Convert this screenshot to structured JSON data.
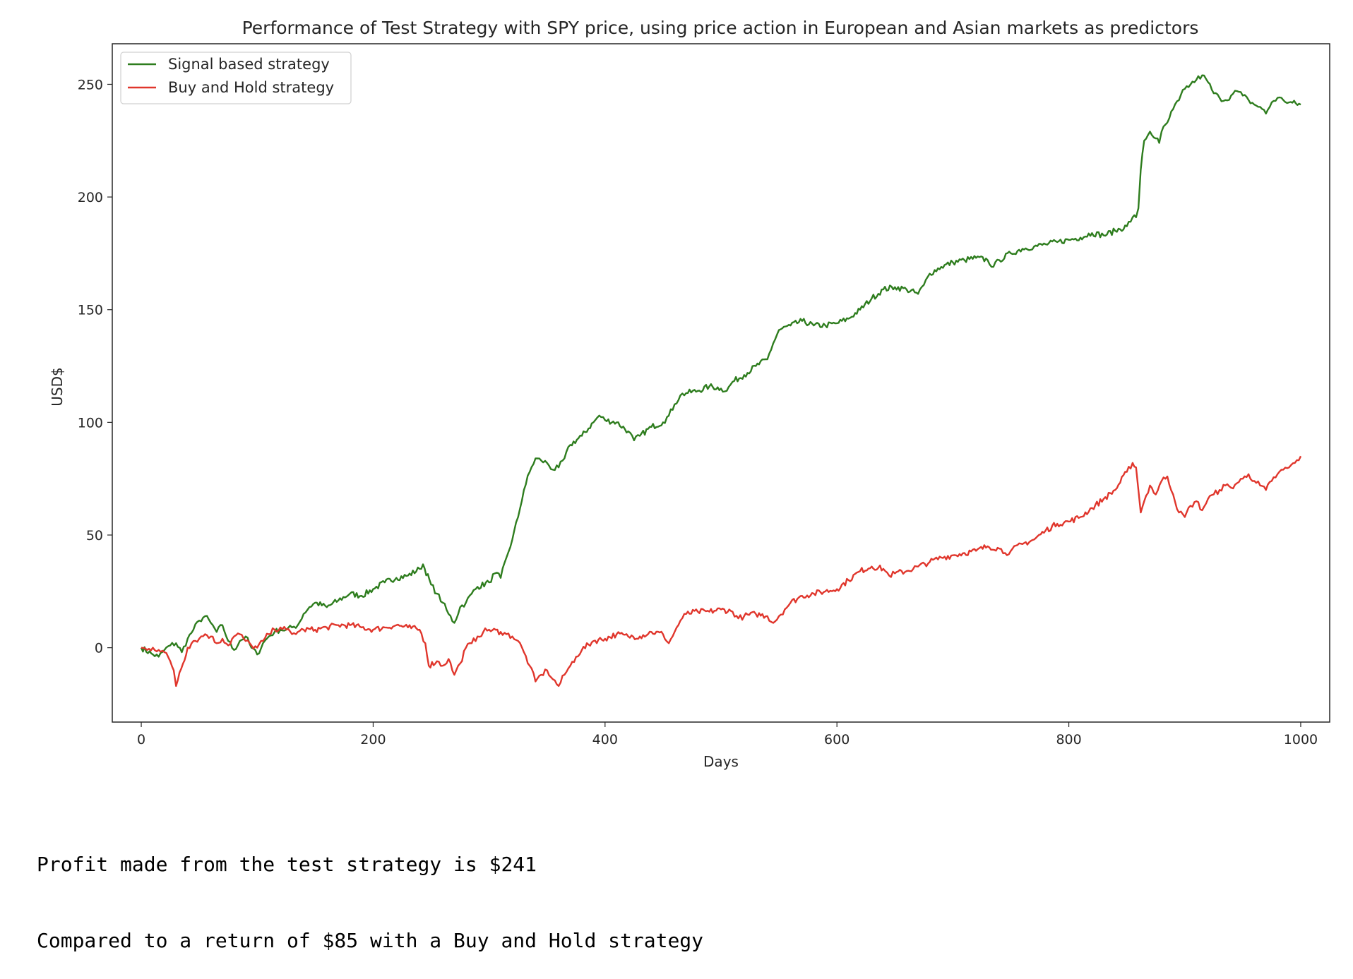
{
  "chart_data": {
    "type": "line",
    "title": "Performance of Test Strategy with SPY price, using price action in European and Asian markets as predictors",
    "xlabel": "Days",
    "ylabel": "USD$",
    "xlim": [
      -25,
      1025
    ],
    "ylim": [
      -33,
      268
    ],
    "xticks": [
      0,
      200,
      400,
      600,
      800,
      1000
    ],
    "xtick_labels": [
      "0",
      "200",
      "400",
      "600",
      "800",
      "1000"
    ],
    "yticks": [
      0,
      50,
      100,
      150,
      200,
      250
    ],
    "ytick_labels": [
      "0",
      "50",
      "100",
      "150",
      "200",
      "250"
    ],
    "grid": false,
    "legend_position": "top-left",
    "series": [
      {
        "name": "Signal based strategy",
        "color": "#2e7d1e",
        "points": [
          [
            0,
            0
          ],
          [
            10,
            -3
          ],
          [
            15,
            -4
          ],
          [
            20,
            -1
          ],
          [
            25,
            1
          ],
          [
            30,
            2
          ],
          [
            35,
            -2
          ],
          [
            40,
            4
          ],
          [
            45,
            8
          ],
          [
            50,
            12
          ],
          [
            55,
            14
          ],
          [
            60,
            11
          ],
          [
            65,
            7
          ],
          [
            70,
            10
          ],
          [
            75,
            3
          ],
          [
            80,
            -1
          ],
          [
            85,
            3
          ],
          [
            90,
            5
          ],
          [
            95,
            0
          ],
          [
            100,
            -3
          ],
          [
            105,
            2
          ],
          [
            110,
            5
          ],
          [
            115,
            7
          ],
          [
            120,
            8
          ],
          [
            125,
            8
          ],
          [
            130,
            9
          ],
          [
            135,
            10
          ],
          [
            140,
            15
          ],
          [
            145,
            18
          ],
          [
            150,
            20
          ],
          [
            160,
            18
          ],
          [
            170,
            21
          ],
          [
            180,
            24
          ],
          [
            190,
            23
          ],
          [
            200,
            26
          ],
          [
            210,
            29
          ],
          [
            220,
            31
          ],
          [
            230,
            32
          ],
          [
            240,
            35
          ],
          [
            243,
            37
          ],
          [
            250,
            28
          ],
          [
            255,
            24
          ],
          [
            260,
            20
          ],
          [
            265,
            15
          ],
          [
            270,
            11
          ],
          [
            275,
            18
          ],
          [
            280,
            20
          ],
          [
            285,
            24
          ],
          [
            290,
            27
          ],
          [
            300,
            29
          ],
          [
            305,
            33
          ],
          [
            310,
            31
          ],
          [
            315,
            40
          ],
          [
            320,
            48
          ],
          [
            325,
            58
          ],
          [
            330,
            70
          ],
          [
            335,
            78
          ],
          [
            340,
            84
          ],
          [
            345,
            83
          ],
          [
            350,
            82
          ],
          [
            355,
            79
          ],
          [
            360,
            80
          ],
          [
            365,
            84
          ],
          [
            370,
            90
          ],
          [
            380,
            94
          ],
          [
            390,
            100
          ],
          [
            395,
            103
          ],
          [
            400,
            101
          ],
          [
            410,
            100
          ],
          [
            420,
            96
          ],
          [
            425,
            92
          ],
          [
            430,
            94
          ],
          [
            440,
            98
          ],
          [
            450,
            100
          ],
          [
            455,
            103
          ],
          [
            460,
            108
          ],
          [
            465,
            112
          ],
          [
            470,
            113
          ],
          [
            480,
            114
          ],
          [
            490,
            116
          ],
          [
            500,
            115
          ],
          [
            505,
            114
          ],
          [
            510,
            118
          ],
          [
            520,
            121
          ],
          [
            530,
            125
          ],
          [
            540,
            128
          ],
          [
            545,
            135
          ],
          [
            550,
            141
          ],
          [
            560,
            143
          ],
          [
            570,
            145
          ],
          [
            580,
            143
          ],
          [
            590,
            143
          ],
          [
            600,
            144
          ],
          [
            610,
            146
          ],
          [
            620,
            150
          ],
          [
            630,
            155
          ],
          [
            640,
            159
          ],
          [
            650,
            160
          ],
          [
            660,
            159
          ],
          [
            670,
            157
          ],
          [
            675,
            161
          ],
          [
            680,
            166
          ],
          [
            690,
            169
          ],
          [
            700,
            171
          ],
          [
            710,
            172
          ],
          [
            720,
            173
          ],
          [
            730,
            172
          ],
          [
            735,
            169
          ],
          [
            740,
            172
          ],
          [
            750,
            175
          ],
          [
            760,
            177
          ],
          [
            770,
            178
          ],
          [
            780,
            179
          ],
          [
            790,
            180
          ],
          [
            800,
            181
          ],
          [
            810,
            182
          ],
          [
            820,
            184
          ],
          [
            830,
            183
          ],
          [
            840,
            185
          ],
          [
            850,
            187
          ],
          [
            855,
            191
          ],
          [
            858,
            191
          ],
          [
            860,
            195
          ],
          [
            862,
            212
          ],
          [
            865,
            225
          ],
          [
            870,
            229
          ],
          [
            875,
            226
          ],
          [
            878,
            224
          ],
          [
            880,
            229
          ],
          [
            885,
            233
          ],
          [
            890,
            239
          ],
          [
            895,
            243
          ],
          [
            900,
            248
          ],
          [
            905,
            250
          ],
          [
            910,
            252
          ],
          [
            915,
            254
          ],
          [
            920,
            251
          ],
          [
            925,
            246
          ],
          [
            930,
            244
          ],
          [
            935,
            243
          ],
          [
            940,
            245
          ],
          [
            945,
            247
          ],
          [
            950,
            245
          ],
          [
            955,
            243
          ],
          [
            960,
            241
          ],
          [
            965,
            240
          ],
          [
            970,
            237
          ],
          [
            975,
            242
          ],
          [
            980,
            244
          ],
          [
            985,
            243
          ],
          [
            990,
            242
          ],
          [
            1000,
            241
          ]
        ]
      },
      {
        "name": "Buy and Hold strategy",
        "color": "#e0362c",
        "points": [
          [
            0,
            0
          ],
          [
            5,
            -1
          ],
          [
            10,
            0
          ],
          [
            15,
            -1
          ],
          [
            20,
            -2
          ],
          [
            25,
            -6
          ],
          [
            28,
            -10
          ],
          [
            30,
            -17
          ],
          [
            33,
            -11
          ],
          [
            36,
            -7
          ],
          [
            40,
            0
          ],
          [
            45,
            3
          ],
          [
            50,
            4
          ],
          [
            55,
            6
          ],
          [
            60,
            5
          ],
          [
            65,
            2
          ],
          [
            70,
            4
          ],
          [
            75,
            1
          ],
          [
            80,
            5
          ],
          [
            85,
            6
          ],
          [
            90,
            3
          ],
          [
            95,
            1
          ],
          [
            100,
            0
          ],
          [
            105,
            3
          ],
          [
            110,
            6
          ],
          [
            115,
            8
          ],
          [
            120,
            9
          ],
          [
            125,
            8
          ],
          [
            130,
            6
          ],
          [
            135,
            7
          ],
          [
            140,
            8
          ],
          [
            150,
            8
          ],
          [
            160,
            9
          ],
          [
            170,
            10
          ],
          [
            180,
            10
          ],
          [
            190,
            9
          ],
          [
            200,
            8
          ],
          [
            210,
            9
          ],
          [
            220,
            10
          ],
          [
            230,
            9
          ],
          [
            240,
            8
          ],
          [
            245,
            2
          ],
          [
            248,
            -8
          ],
          [
            255,
            -6
          ],
          [
            260,
            -8
          ],
          [
            265,
            -5
          ],
          [
            270,
            -12
          ],
          [
            275,
            -7
          ],
          [
            280,
            0
          ],
          [
            285,
            2
          ],
          [
            290,
            5
          ],
          [
            295,
            7
          ],
          [
            300,
            8
          ],
          [
            310,
            7
          ],
          [
            315,
            6
          ],
          [
            320,
            5
          ],
          [
            325,
            3
          ],
          [
            330,
            -2
          ],
          [
            335,
            -8
          ],
          [
            340,
            -15
          ],
          [
            345,
            -12
          ],
          [
            350,
            -10
          ],
          [
            355,
            -14
          ],
          [
            360,
            -17
          ],
          [
            365,
            -12
          ],
          [
            370,
            -8
          ],
          [
            375,
            -4
          ],
          [
            380,
            -1
          ],
          [
            390,
            3
          ],
          [
            400,
            4
          ],
          [
            410,
            6
          ],
          [
            420,
            5
          ],
          [
            430,
            5
          ],
          [
            440,
            7
          ],
          [
            450,
            6
          ],
          [
            455,
            2
          ],
          [
            460,
            7
          ],
          [
            465,
            12
          ],
          [
            470,
            15
          ],
          [
            480,
            16
          ],
          [
            490,
            16
          ],
          [
            500,
            17
          ],
          [
            510,
            16
          ],
          [
            515,
            13
          ],
          [
            520,
            14
          ],
          [
            530,
            15
          ],
          [
            540,
            14
          ],
          [
            545,
            11
          ],
          [
            550,
            14
          ],
          [
            555,
            17
          ],
          [
            560,
            20
          ],
          [
            570,
            23
          ],
          [
            580,
            24
          ],
          [
            590,
            25
          ],
          [
            600,
            26
          ],
          [
            610,
            30
          ],
          [
            620,
            34
          ],
          [
            630,
            36
          ],
          [
            640,
            35
          ],
          [
            645,
            32
          ],
          [
            650,
            33
          ],
          [
            660,
            34
          ],
          [
            670,
            36
          ],
          [
            680,
            38
          ],
          [
            690,
            40
          ],
          [
            700,
            41
          ],
          [
            710,
            42
          ],
          [
            720,
            43
          ],
          [
            730,
            45
          ],
          [
            740,
            44
          ],
          [
            745,
            42
          ],
          [
            750,
            43
          ],
          [
            760,
            46
          ],
          [
            770,
            48
          ],
          [
            780,
            52
          ],
          [
            790,
            55
          ],
          [
            800,
            56
          ],
          [
            810,
            58
          ],
          [
            820,
            62
          ],
          [
            830,
            66
          ],
          [
            840,
            70
          ],
          [
            850,
            78
          ],
          [
            855,
            82
          ],
          [
            858,
            80
          ],
          [
            860,
            70
          ],
          [
            862,
            60
          ],
          [
            865,
            65
          ],
          [
            870,
            72
          ],
          [
            875,
            68
          ],
          [
            880,
            74
          ],
          [
            885,
            76
          ],
          [
            890,
            68
          ],
          [
            895,
            60
          ],
          [
            900,
            58
          ],
          [
            905,
            63
          ],
          [
            910,
            65
          ],
          [
            915,
            61
          ],
          [
            920,
            66
          ],
          [
            925,
            68
          ],
          [
            930,
            70
          ],
          [
            935,
            72
          ],
          [
            940,
            71
          ],
          [
            945,
            73
          ],
          [
            950,
            75
          ],
          [
            955,
            77
          ],
          [
            960,
            74
          ],
          [
            965,
            72
          ],
          [
            970,
            70
          ],
          [
            975,
            74
          ],
          [
            980,
            77
          ],
          [
            985,
            79
          ],
          [
            990,
            80
          ],
          [
            995,
            82
          ],
          [
            1000,
            85
          ]
        ]
      }
    ]
  },
  "output_lines": [
    "Profit made from the test strategy is $241",
    "Compared to a return of $85 with a Buy and Hold strategy"
  ]
}
